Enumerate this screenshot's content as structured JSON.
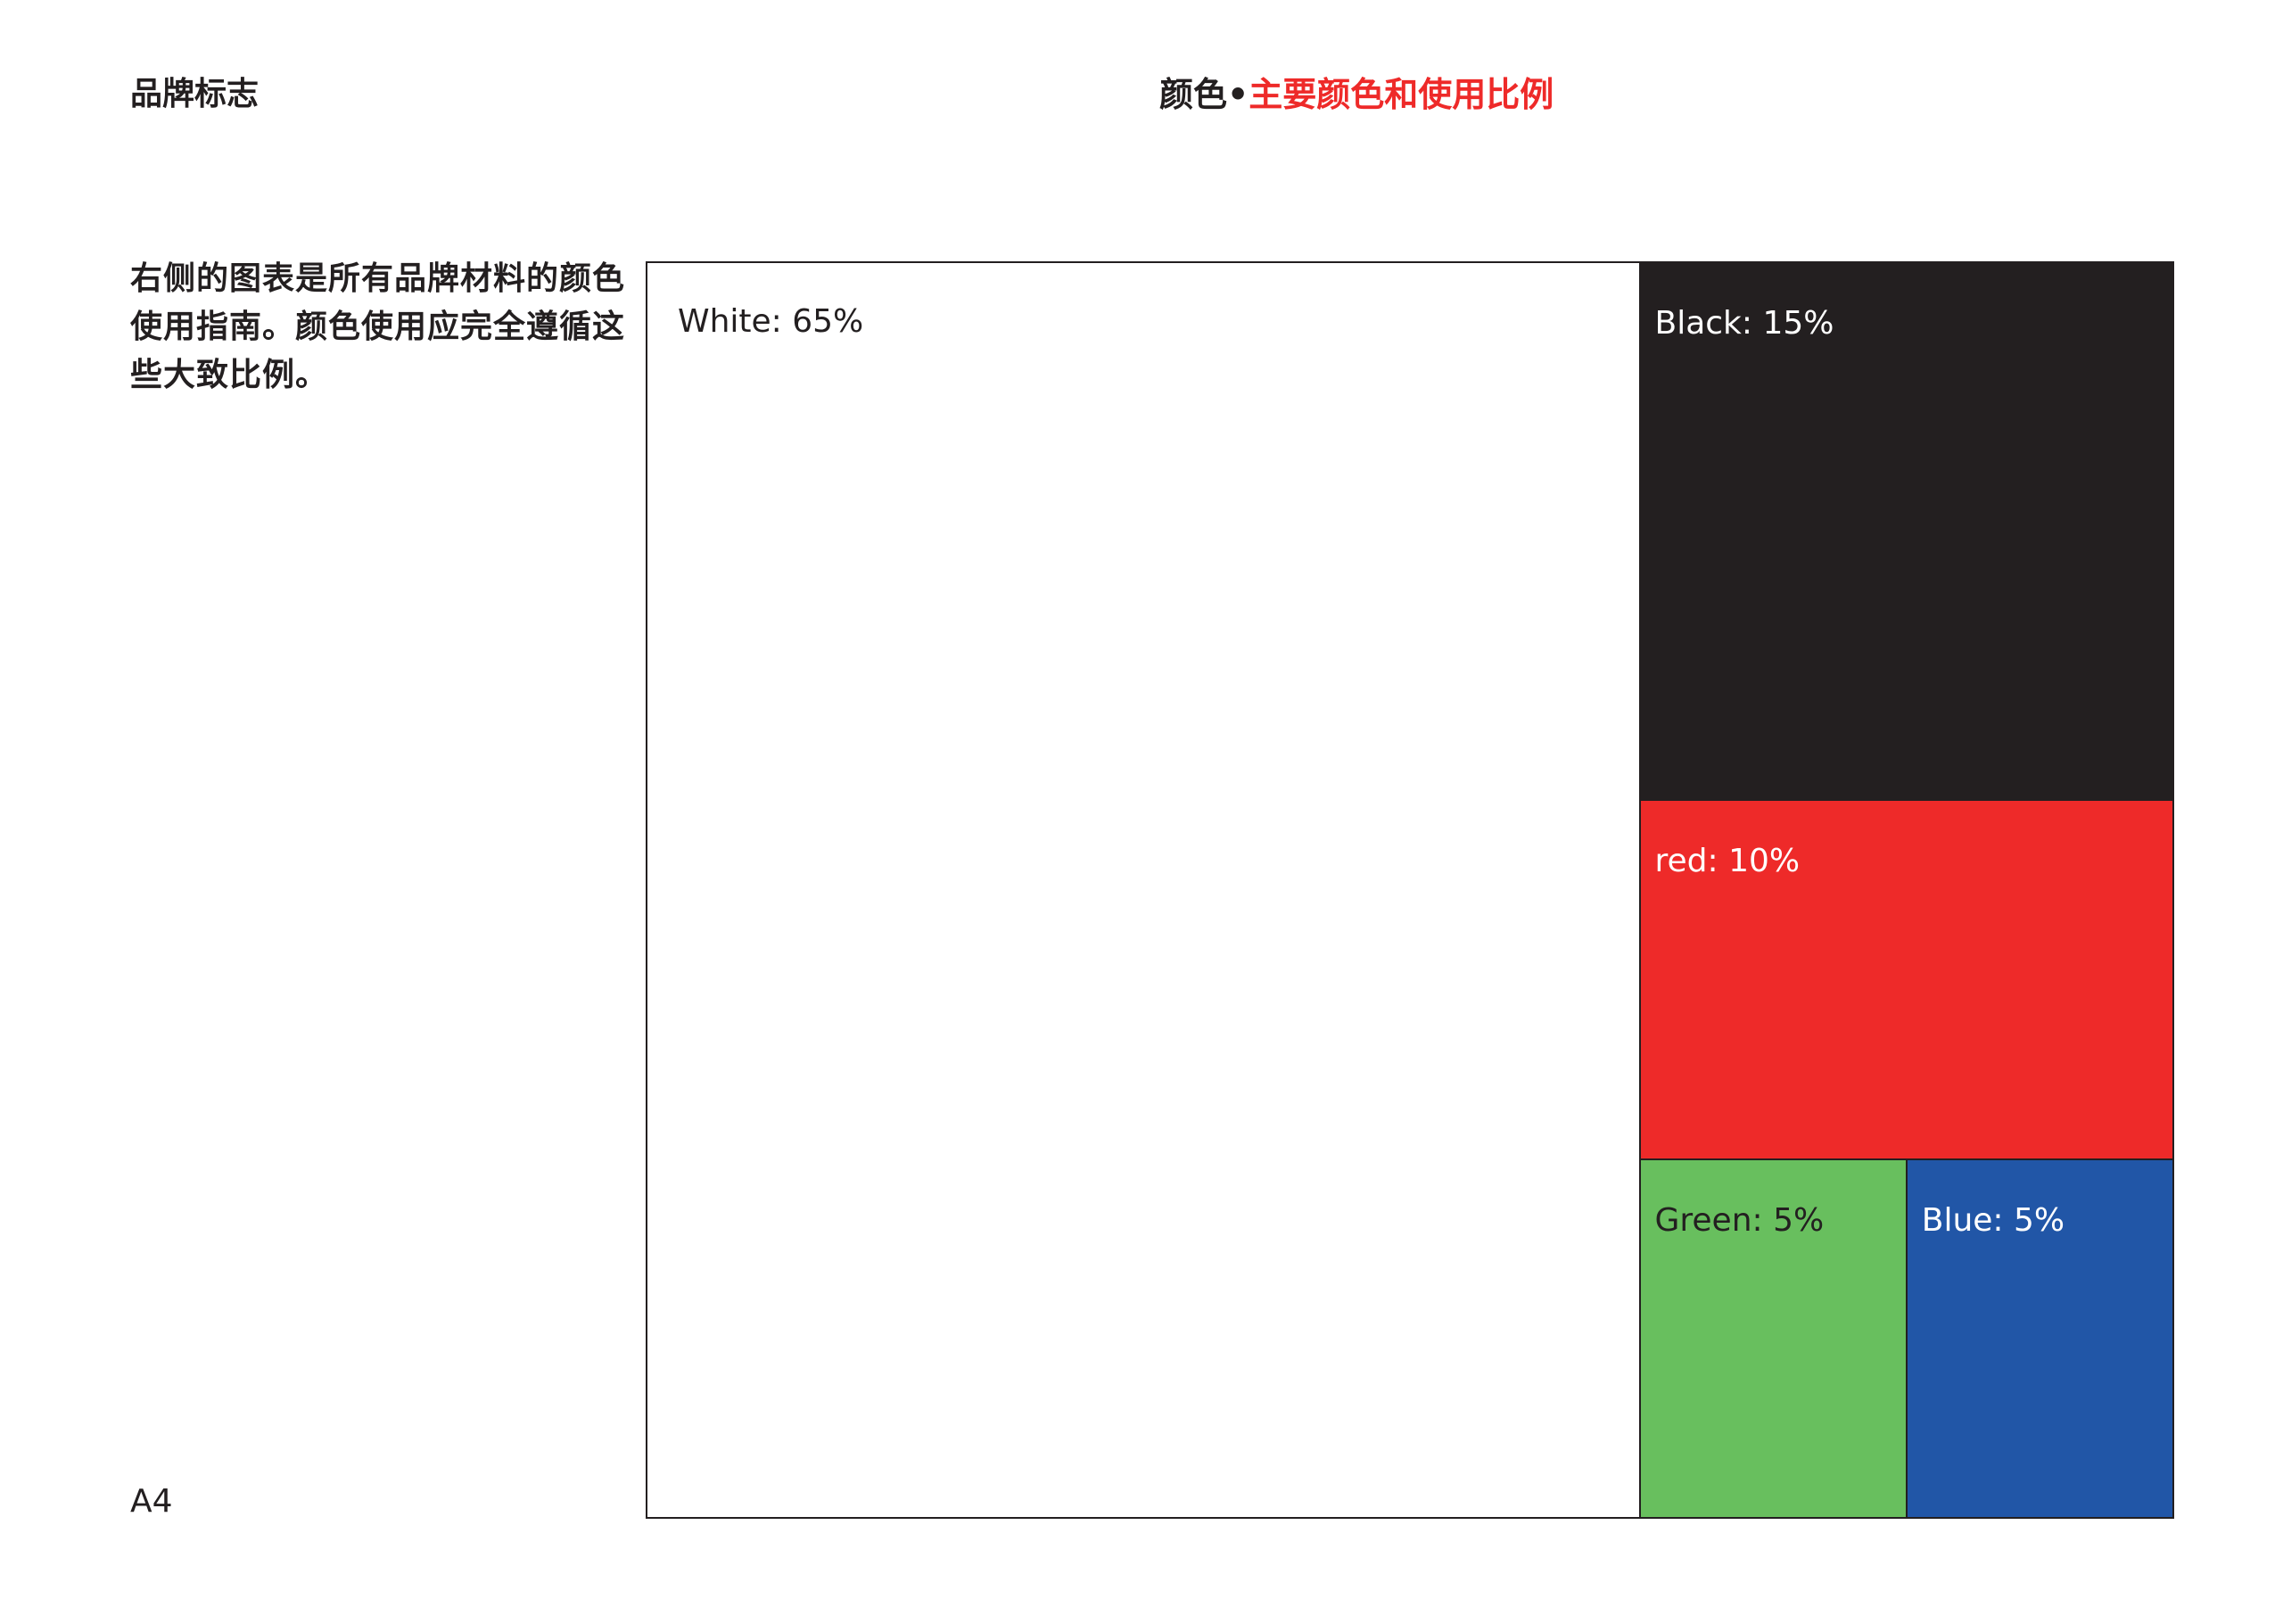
{
  "header": {
    "section_label": "品牌标志",
    "title_prefix": "颜色•",
    "title_accent": "主要颜色和使用比例"
  },
  "description": "右侧的图表是所有品牌材料的颜色使用指南。颜色使用应完全遵循这些大致比例。",
  "page_number": "A4",
  "colors": {
    "text": "#231f20",
    "accent": "#ee2a29"
  },
  "chart_data": {
    "type": "treemap",
    "items": [
      {
        "label": "White: 65%",
        "share": 65,
        "color": "#ffffff"
      },
      {
        "label": "Black: 15%",
        "share": 15,
        "color": "#231f20"
      },
      {
        "label": "red: 10%",
        "share": 10,
        "color": "#ee2a29"
      },
      {
        "label": "Green: 5%",
        "share": 5,
        "color": "#68bf5e"
      },
      {
        "label": "Blue: 5%",
        "share": 5,
        "color": "#2156a7"
      }
    ]
  }
}
